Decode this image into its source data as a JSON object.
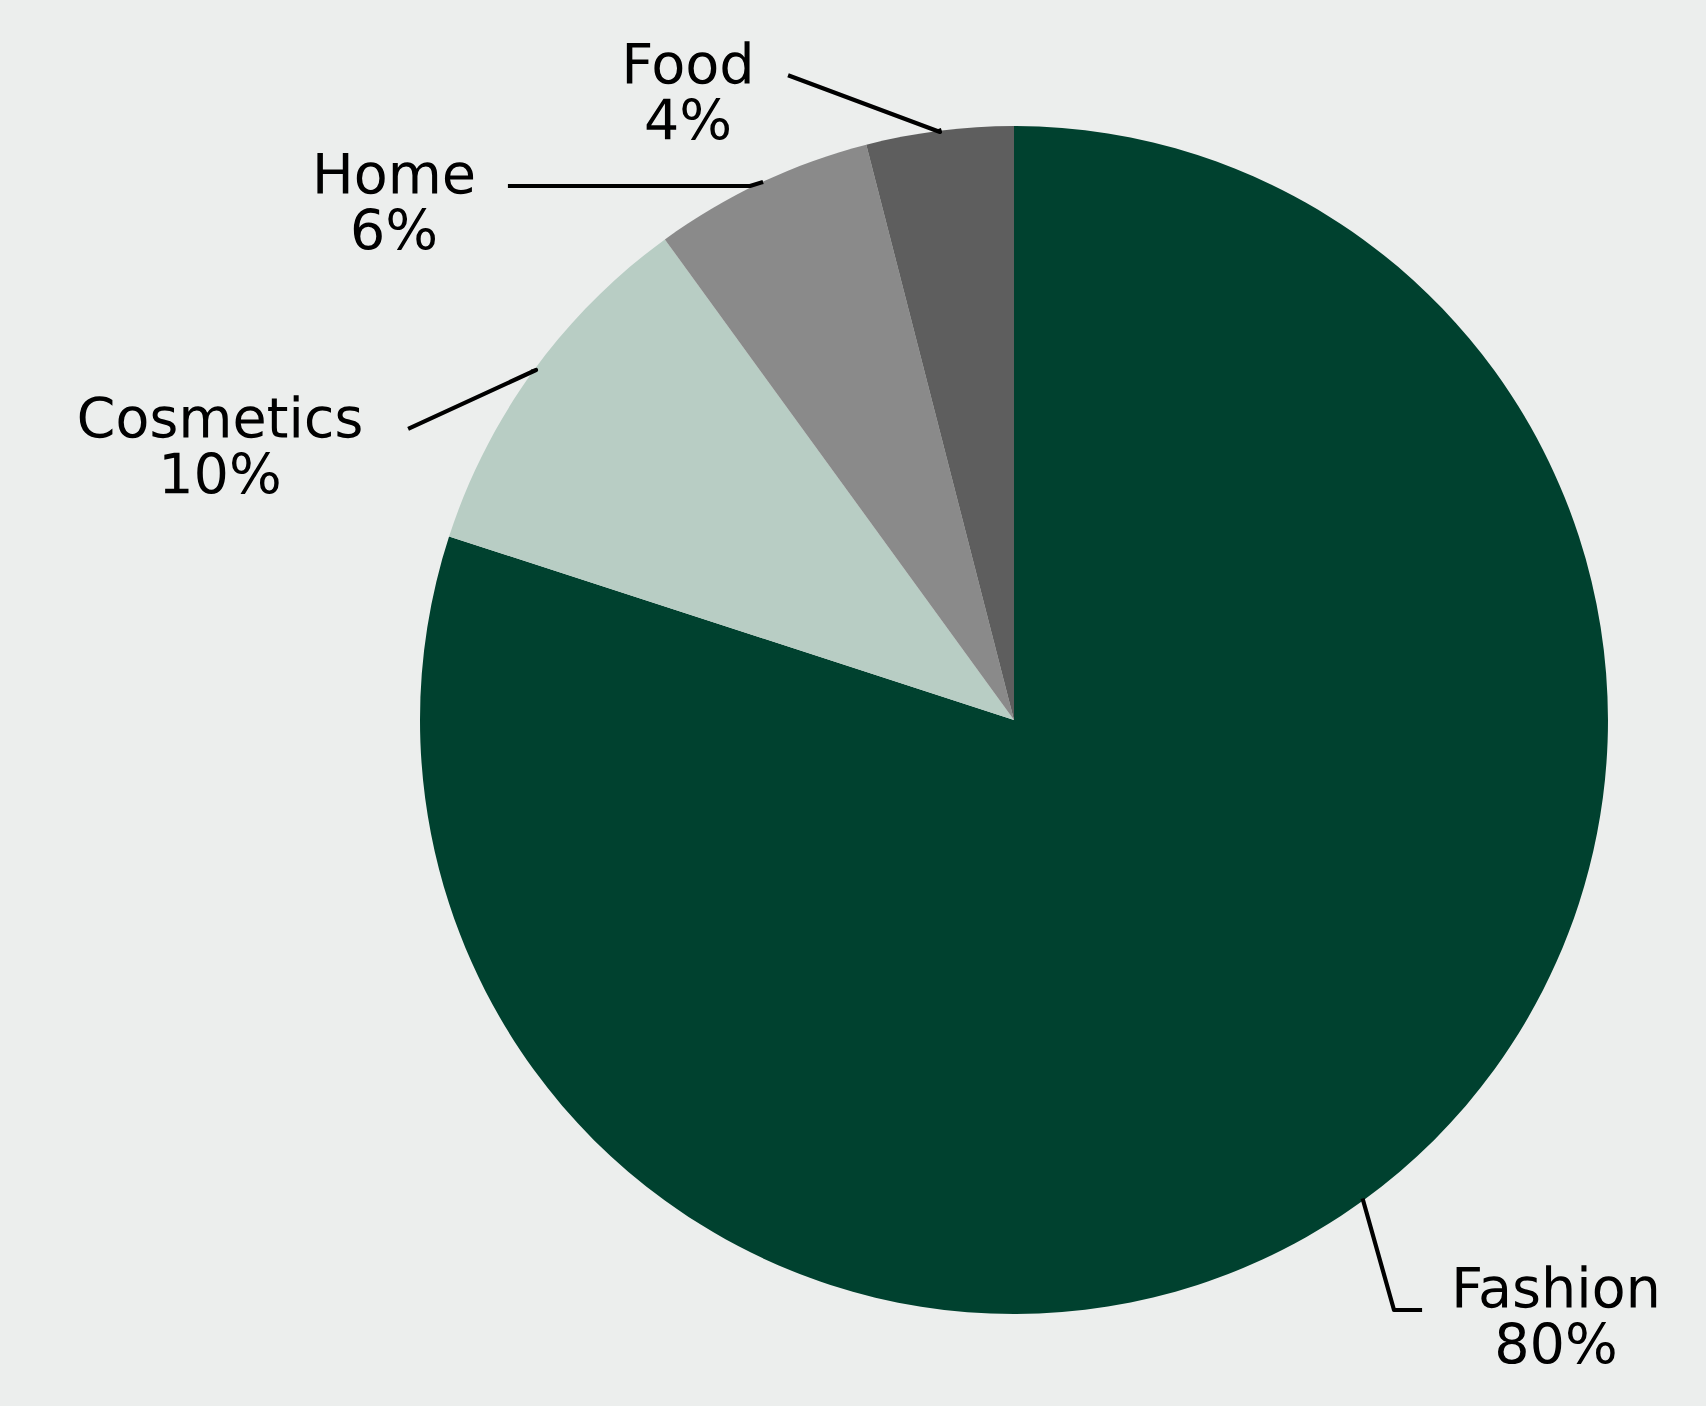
{
  "chart_data": {
    "type": "pie",
    "categories": [
      "Fashion",
      "Cosmetics",
      "Home",
      "Food"
    ],
    "values": [
      80,
      10,
      6,
      4
    ],
    "colors": [
      "#00412f",
      "#b8cdc4",
      "#8a8a8a",
      "#5e5e5e"
    ],
    "value_labels": [
      "80%",
      "10%",
      "6%",
      "4%"
    ]
  }
}
